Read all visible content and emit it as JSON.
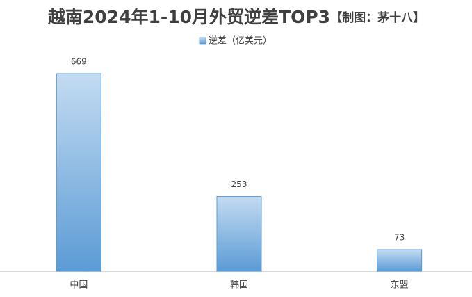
{
  "chart_data": {
    "type": "bar",
    "title": "越南2024年1-10月外贸逆差TOP3",
    "subtitle": "【制图：茅十八】",
    "categories": [
      "中国",
      "韩国",
      "东盟"
    ],
    "series": [
      {
        "name": "逆差（亿美元）",
        "color": "#5b9bd5",
        "values": [
          669,
          253,
          73
        ]
      }
    ],
    "grid": false,
    "legend": "top"
  }
}
